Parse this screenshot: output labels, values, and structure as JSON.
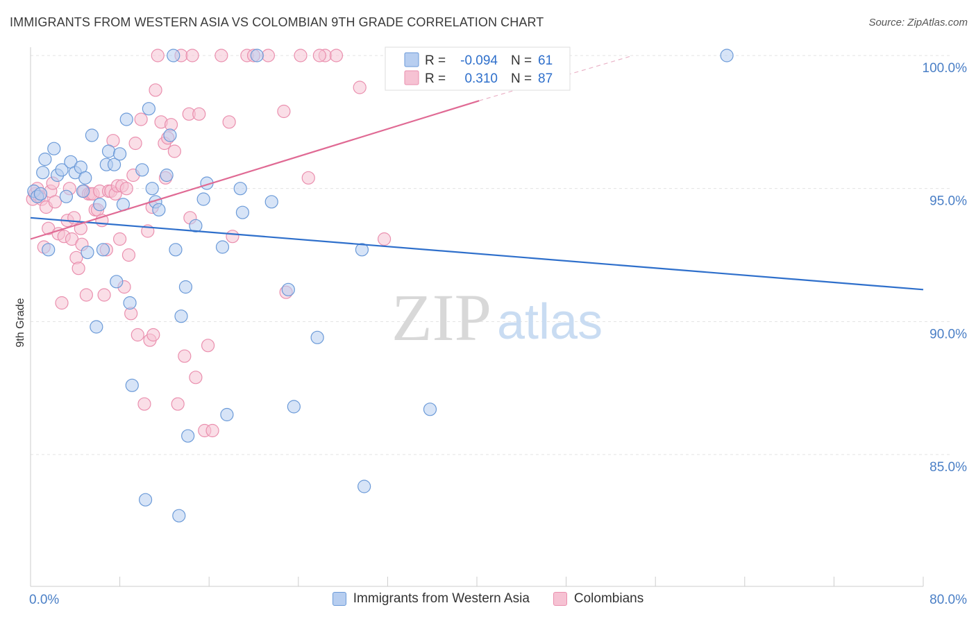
{
  "header": {
    "title": "IMMIGRANTS FROM WESTERN ASIA VS COLOMBIAN 9TH GRADE CORRELATION CHART",
    "source": "Source: ZipAtlas.com"
  },
  "watermark": {
    "zip": "ZIP",
    "atlas": "atlas"
  },
  "colors": {
    "blue_fill": "#b7cef0",
    "blue_stroke": "#6b9ad8",
    "blue_line": "#2e6fcb",
    "pink_fill": "#f6c2d3",
    "pink_stroke": "#ea8fae",
    "pink_line": "#e06a94",
    "axis_text": "#4a7fc6",
    "grid": "#e3e3e3"
  },
  "legend_stats": {
    "rows": [
      {
        "series": "blue",
        "r_label": "R =",
        "r_value": "-0.094",
        "n_label": "N =",
        "n_value": "61"
      },
      {
        "series": "pink",
        "r_label": "R =",
        "r_value": "0.310",
        "n_label": "N =",
        "n_value": "87"
      }
    ]
  },
  "chart_data": {
    "type": "scatter",
    "title": "IMMIGRANTS FROM WESTERN ASIA VS COLOMBIAN 9TH GRADE CORRELATION CHART",
    "xlabel": "",
    "ylabel": "9th Grade",
    "xlim": [
      0,
      80
    ],
    "ylim": [
      80.8,
      101.0
    ],
    "x_tick_labels": [
      "0.0%",
      "80.0%"
    ],
    "y_ticks": [
      85,
      90,
      95,
      100
    ],
    "y_tick_labels": [
      "85.0%",
      "90.0%",
      "95.0%",
      "100.0%"
    ],
    "grid": true,
    "legend_position": "top-center",
    "series": [
      {
        "name": "Immigrants from Western Asia",
        "color": "blue",
        "stats": {
          "R": -0.094,
          "N": 61
        },
        "trend": {
          "x": [
            0,
            80
          ],
          "y": [
            93.9,
            91.2
          ]
        },
        "points": [
          [
            0.3,
            94.9
          ],
          [
            0.6,
            94.7
          ],
          [
            0.9,
            94.8
          ],
          [
            1.1,
            95.6
          ],
          [
            1.3,
            96.1
          ],
          [
            1.6,
            92.7
          ],
          [
            2.1,
            96.5
          ],
          [
            2.4,
            95.5
          ],
          [
            2.8,
            95.7
          ],
          [
            3.2,
            94.7
          ],
          [
            3.6,
            96.0
          ],
          [
            4.0,
            95.6
          ],
          [
            4.5,
            95.8
          ],
          [
            4.7,
            94.9
          ],
          [
            4.9,
            95.4
          ],
          [
            5.1,
            92.6
          ],
          [
            5.5,
            97.0
          ],
          [
            5.9,
            89.8
          ],
          [
            6.2,
            94.4
          ],
          [
            6.5,
            92.7
          ],
          [
            6.8,
            95.9
          ],
          [
            7.0,
            96.4
          ],
          [
            7.5,
            95.9
          ],
          [
            7.7,
            91.5
          ],
          [
            8.0,
            96.3
          ],
          [
            8.3,
            94.4
          ],
          [
            8.6,
            97.6
          ],
          [
            8.9,
            90.7
          ],
          [
            9.1,
            87.6
          ],
          [
            10.0,
            95.7
          ],
          [
            10.3,
            83.3
          ],
          [
            10.6,
            98.0
          ],
          [
            10.9,
            95.0
          ],
          [
            11.2,
            94.5
          ],
          [
            11.5,
            94.2
          ],
          [
            12.2,
            95.5
          ],
          [
            12.5,
            97.0
          ],
          [
            12.8,
            100.0
          ],
          [
            13.0,
            92.7
          ],
          [
            13.3,
            82.7
          ],
          [
            13.5,
            90.2
          ],
          [
            13.9,
            91.3
          ],
          [
            14.1,
            85.7
          ],
          [
            14.8,
            93.6
          ],
          [
            15.5,
            94.6
          ],
          [
            15.8,
            95.2
          ],
          [
            17.2,
            92.8
          ],
          [
            17.6,
            86.5
          ],
          [
            18.8,
            95.0
          ],
          [
            19.0,
            94.1
          ],
          [
            20.3,
            100.0
          ],
          [
            21.6,
            94.5
          ],
          [
            23.1,
            91.2
          ],
          [
            23.6,
            86.8
          ],
          [
            25.7,
            89.4
          ],
          [
            29.7,
            92.7
          ],
          [
            29.9,
            83.8
          ],
          [
            35.8,
            86.7
          ],
          [
            38.5,
            100.0
          ],
          [
            41.1,
            100.0
          ],
          [
            62.4,
            100.0
          ]
        ]
      },
      {
        "name": "Colombians",
        "color": "pink",
        "stats": {
          "R": 0.31,
          "N": 87
        },
        "trend": {
          "x": [
            0,
            40.2
          ],
          "y": [
            93.1,
            98.3
          ]
        },
        "trend_extension": {
          "x": [
            40.2,
            54.0
          ],
          "y": [
            98.3,
            100.0
          ]
        },
        "points": [
          [
            0.2,
            94.6
          ],
          [
            0.4,
            94.8
          ],
          [
            0.6,
            95.0
          ],
          [
            0.8,
            94.7
          ],
          [
            1.0,
            94.6
          ],
          [
            1.2,
            92.8
          ],
          [
            1.4,
            94.3
          ],
          [
            1.6,
            93.5
          ],
          [
            1.8,
            94.9
          ],
          [
            2.0,
            95.2
          ],
          [
            2.2,
            94.5
          ],
          [
            2.5,
            93.3
          ],
          [
            2.8,
            90.7
          ],
          [
            3.0,
            93.2
          ],
          [
            3.3,
            93.8
          ],
          [
            3.5,
            95.0
          ],
          [
            3.7,
            93.1
          ],
          [
            3.9,
            93.9
          ],
          [
            4.1,
            92.4
          ],
          [
            4.3,
            92.0
          ],
          [
            4.5,
            93.5
          ],
          [
            4.6,
            92.9
          ],
          [
            4.8,
            94.9
          ],
          [
            5.0,
            91.0
          ],
          [
            5.2,
            94.8
          ],
          [
            5.4,
            94.8
          ],
          [
            5.6,
            94.8
          ],
          [
            5.8,
            94.2
          ],
          [
            6.0,
            94.2
          ],
          [
            6.2,
            94.9
          ],
          [
            6.4,
            93.8
          ],
          [
            6.6,
            91.0
          ],
          [
            6.8,
            92.7
          ],
          [
            7.0,
            94.9
          ],
          [
            7.2,
            94.9
          ],
          [
            7.4,
            96.8
          ],
          [
            7.6,
            94.8
          ],
          [
            7.8,
            95.1
          ],
          [
            8.0,
            93.1
          ],
          [
            8.2,
            95.1
          ],
          [
            8.4,
            91.3
          ],
          [
            8.6,
            95.0
          ],
          [
            8.8,
            92.5
          ],
          [
            9.0,
            90.3
          ],
          [
            9.2,
            95.5
          ],
          [
            9.4,
            96.7
          ],
          [
            9.6,
            89.5
          ],
          [
            9.9,
            97.6
          ],
          [
            10.2,
            86.9
          ],
          [
            10.5,
            93.4
          ],
          [
            10.7,
            89.3
          ],
          [
            11.0,
            89.5
          ],
          [
            11.2,
            98.7
          ],
          [
            11.4,
            100.0
          ],
          [
            11.7,
            97.5
          ],
          [
            12.0,
            96.7
          ],
          [
            12.3,
            96.9
          ],
          [
            12.6,
            97.4
          ],
          [
            12.9,
            96.4
          ],
          [
            13.2,
            86.9
          ],
          [
            13.5,
            100.0
          ],
          [
            13.8,
            88.7
          ],
          [
            14.2,
            97.8
          ],
          [
            14.5,
            100.0
          ],
          [
            14.8,
            87.9
          ],
          [
            15.1,
            97.8
          ],
          [
            15.6,
            85.9
          ],
          [
            15.9,
            89.1
          ],
          [
            16.3,
            85.9
          ],
          [
            17.1,
            100.0
          ],
          [
            17.8,
            97.5
          ],
          [
            18.1,
            93.2
          ],
          [
            19.4,
            100.0
          ],
          [
            20.0,
            100.0
          ],
          [
            21.3,
            100.0
          ],
          [
            22.7,
            97.9
          ],
          [
            22.9,
            91.1
          ],
          [
            24.2,
            100.0
          ],
          [
            24.9,
            95.4
          ],
          [
            26.4,
            100.0
          ],
          [
            27.4,
            100.0
          ],
          [
            29.5,
            98.8
          ],
          [
            31.7,
            93.1
          ],
          [
            12.1,
            95.4
          ],
          [
            14.3,
            93.9
          ],
          [
            25.9,
            100.0
          ],
          [
            10.9,
            94.3
          ]
        ]
      }
    ]
  },
  "bottom_legend": [
    {
      "series": "blue",
      "label": "Immigrants from Western Asia"
    },
    {
      "series": "pink",
      "label": "Colombians"
    }
  ]
}
